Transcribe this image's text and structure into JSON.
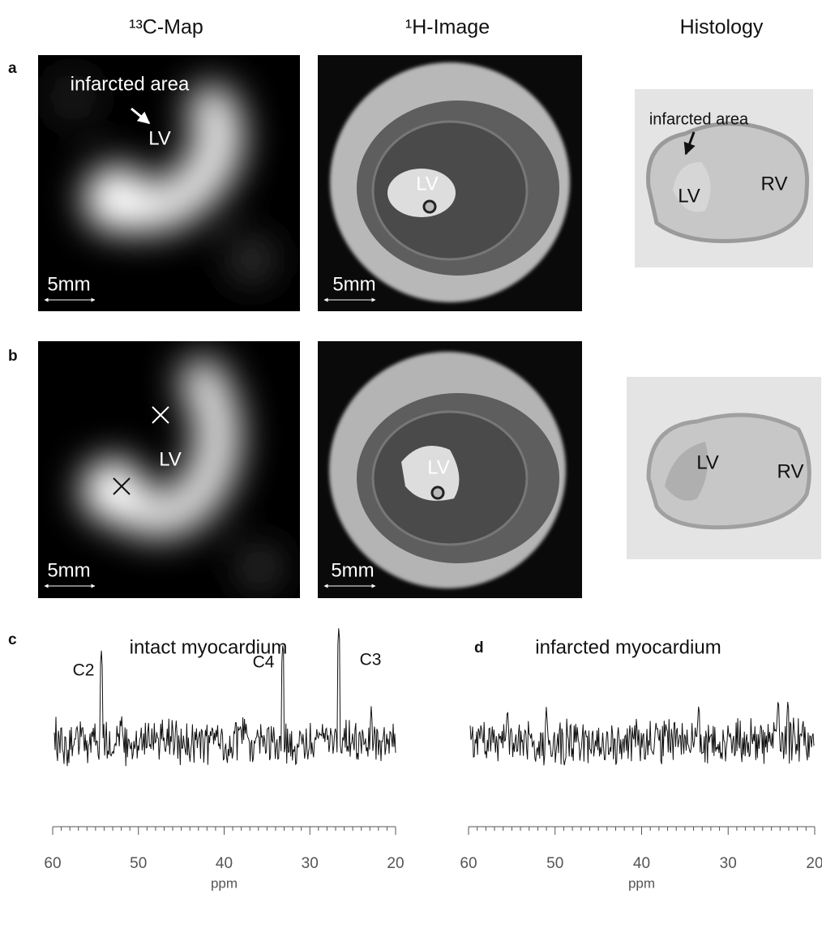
{
  "columns": [
    "¹³C-Map",
    "¹H-Image",
    "Histology"
  ],
  "rows": [
    {
      "label": "a",
      "map": [
        "infarcted area",
        "LV",
        "5mm"
      ],
      "mri": [
        "LV",
        "5mm"
      ],
      "histology": [
        "infarcted area",
        "LV",
        "RV"
      ]
    },
    {
      "label": "b",
      "map": [
        "LV",
        "5mm"
      ],
      "mri": [
        "LV",
        "5mm"
      ],
      "histology": [
        "LV",
        "RV"
      ]
    }
  ],
  "spectra": [
    {
      "label": "c",
      "title": "intact myocardium",
      "peaks": [
        "C2",
        "C4",
        "C3"
      ],
      "ticks": [
        "60",
        "50",
        "40",
        "30",
        "20"
      ],
      "axis_label": "ppm"
    },
    {
      "label": "d",
      "title": "infarcted myocardium",
      "ticks": [
        "60",
        "50",
        "40",
        "30",
        "20"
      ],
      "axis_label": "ppm"
    }
  ]
}
